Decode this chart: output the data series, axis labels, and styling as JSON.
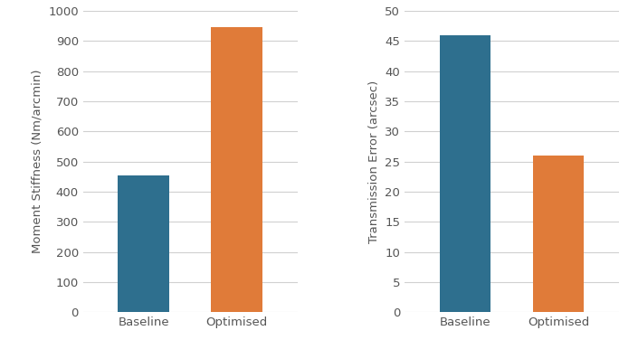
{
  "chart_a": {
    "categories": [
      "Baseline",
      "Optimised"
    ],
    "values": [
      455,
      945
    ],
    "colors": [
      "#2e6f8e",
      "#e07b39"
    ],
    "ylabel": "Moment Stiffness (Nm/arcmin)",
    "ylim": [
      0,
      1000
    ],
    "yticks": [
      0,
      100,
      200,
      300,
      400,
      500,
      600,
      700,
      800,
      900,
      1000
    ]
  },
  "chart_b": {
    "categories": [
      "Baseline",
      "Optimised"
    ],
    "values": [
      46,
      26
    ],
    "colors": [
      "#2e6f8e",
      "#e07b39"
    ],
    "ylabel": "Transmission Error (arcsec)",
    "ylim": [
      0,
      50
    ],
    "yticks": [
      0,
      5,
      10,
      15,
      20,
      25,
      30,
      35,
      40,
      45,
      50
    ]
  },
  "panel_background": "#ffffff",
  "fig_background": "#ffffff",
  "bar_width": 0.55,
  "grid_color": "#d0d0d0",
  "tick_label_fontsize": 9.5,
  "axis_label_fontsize": 9.5
}
